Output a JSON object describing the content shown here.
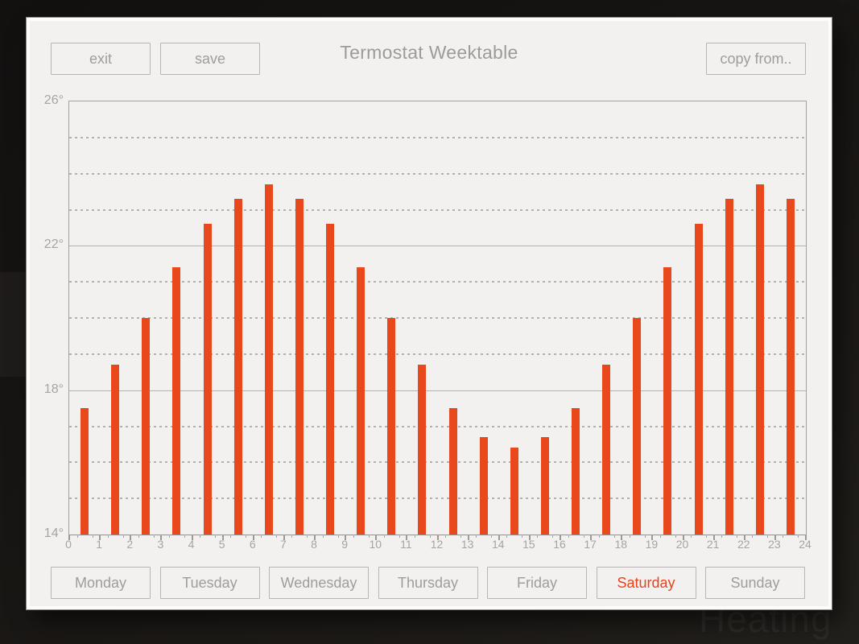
{
  "backdrop": {
    "page_title": "Heating"
  },
  "toolbar": {
    "exit_label": "exit",
    "save_label": "save",
    "title": "Termostat Weektable",
    "copy_from_label": "copy from.."
  },
  "days": [
    {
      "label": "Monday",
      "selected": false
    },
    {
      "label": "Tuesday",
      "selected": false
    },
    {
      "label": "Wednesday",
      "selected": false
    },
    {
      "label": "Thursday",
      "selected": false
    },
    {
      "label": "Friday",
      "selected": false
    },
    {
      "label": "Saturday",
      "selected": true
    },
    {
      "label": "Sunday",
      "selected": false
    }
  ],
  "colors": {
    "accent": "#e8481c",
    "bar": "#e8481c",
    "selected_day_text": "#e8421c",
    "panel": "#f2f1f0",
    "button_border": "#b7b6b5",
    "muted_text": "#9e9d9c",
    "tick_label": "#a5a4a3",
    "grid_solid": "#b3b2b1",
    "grid_dashed": "#b2b1b0",
    "plot_border": "#a3a2a1"
  },
  "chart_data": {
    "type": "bar",
    "title": "Termostat Weektable",
    "unit": "degrees C",
    "x_hours": [
      0,
      1,
      2,
      3,
      4,
      5,
      6,
      7,
      8,
      9,
      10,
      11,
      12,
      13,
      14,
      15,
      16,
      17,
      18,
      19,
      20,
      21,
      22,
      23
    ],
    "values": [
      17.5,
      18.7,
      20.0,
      21.4,
      22.6,
      23.3,
      23.7,
      23.3,
      22.6,
      21.4,
      20.0,
      18.7,
      17.5,
      16.7,
      16.4,
      16.7,
      17.5,
      18.7,
      20.0,
      21.4,
      22.6,
      23.3,
      23.7,
      23.3
    ],
    "ylim": [
      14,
      26
    ],
    "yticks_labeled": [
      {
        "value": 26,
        "label": "26°"
      },
      {
        "value": 22,
        "label": "22°"
      },
      {
        "value": 18,
        "label": "18°"
      },
      {
        "value": 14,
        "label": "14°"
      }
    ],
    "ygrid_solid": [
      22,
      18
    ],
    "ygrid_dashed": [
      25,
      24,
      23,
      21,
      20,
      19,
      17,
      16,
      15
    ],
    "xtick_labels": [
      "0",
      "1",
      "2",
      "3",
      "4",
      "5",
      "6",
      "7",
      "8",
      "9",
      "10",
      "11",
      "12",
      "13",
      "14",
      "15",
      "16",
      "17",
      "18",
      "19",
      "20",
      "21",
      "22",
      "23",
      "24"
    ],
    "bar_color": "#e8481c",
    "grid": true,
    "legend": null
  }
}
